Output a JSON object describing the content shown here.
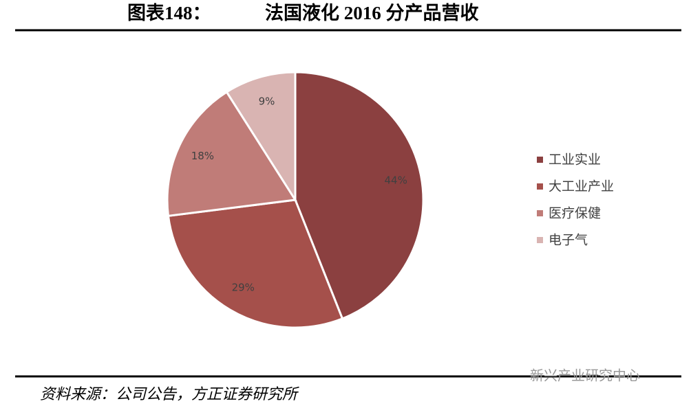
{
  "chart_data": {
    "type": "pie",
    "figure_label": "图表148：",
    "title": "法国液化 2016 分产品营收",
    "categories": [
      "工业实业",
      "大工业产业",
      "医疗保健",
      "电子气"
    ],
    "values": [
      44,
      29,
      18,
      9
    ],
    "value_labels": [
      "44%",
      "29%",
      "18%",
      "9%"
    ],
    "colors": [
      "#8b4040",
      "#a5504b",
      "#c07c78",
      "#d9b4b2"
    ],
    "legend": "right",
    "source": "资料来源：公司公告，方正证券研究所",
    "watermark": "新兴产业研究中心"
  }
}
